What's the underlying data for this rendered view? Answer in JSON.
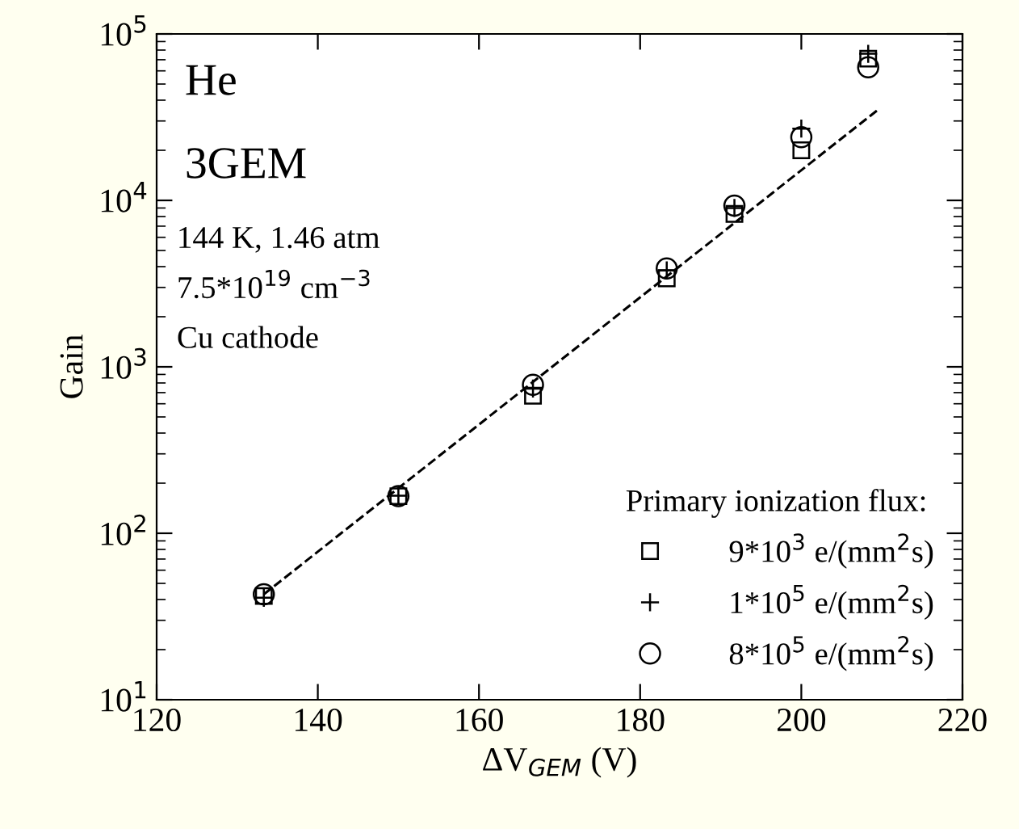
{
  "chart_data": {
    "type": "scatter",
    "xlabel": "ΔV$_{GEM}$ (V)",
    "ylabel": "Gain",
    "legend_title": "Primary ionization flux:",
    "annotations": [
      "He",
      "3GEM",
      "144 K, 1.46 atm",
      "7.5*10$^{19}$ cm$^{−3}$",
      "Cu cathode"
    ],
    "xlim": [
      120,
      220
    ],
    "xticks": [
      120,
      140,
      160,
      180,
      200,
      220
    ],
    "ylim": [
      10,
      100000
    ],
    "yticks": [
      {
        "value": 10,
        "label": "10$^{1}$"
      },
      {
        "value": 100,
        "label": "10$^{2}$"
      },
      {
        "value": 1000,
        "label": "10$^{3}$"
      },
      {
        "value": 10000,
        "label": "10$^{4}$"
      },
      {
        "value": 100000,
        "label": "10$^{5}$"
      }
    ],
    "log": "y",
    "grid": false,
    "legend": "bottom right",
    "series": [
      {
        "name": "9*10$^{3}$ e/(mm$^{2}$s)",
        "color": "#000000",
        "marker": "square",
        "x": [
          133.3,
          150,
          166.7,
          183.3,
          191.7,
          200,
          208.3
        ],
        "values": [
          42,
          167,
          670,
          3400,
          8300,
          20000,
          71000
        ]
      },
      {
        "name": "1*10$^{5}$ e/(mm$^{2}$s)",
        "color": "#000000",
        "marker": "cross",
        "x": [
          133.3,
          150,
          166.7,
          183.3,
          191.7,
          200,
          208.3
        ],
        "values": [
          41,
          168,
          740,
          3800,
          9000,
          27000,
          76000
        ]
      },
      {
        "name": "8*10$^{5}$ e/(mm$^{2}$s)",
        "color": "#000000",
        "marker": "circle",
        "x": [
          133.3,
          150,
          166.7,
          183.3,
          191.7,
          200,
          208.3
        ],
        "values": [
          43,
          167,
          780,
          3900,
          9300,
          24000,
          63000
        ]
      },
      {
        "type": "line",
        "color": "#000000",
        "line_style": "dashed",
        "marker": "none",
        "x": [
          133.3,
          209.5
        ],
        "values": [
          43,
          35000
        ]
      }
    ]
  }
}
